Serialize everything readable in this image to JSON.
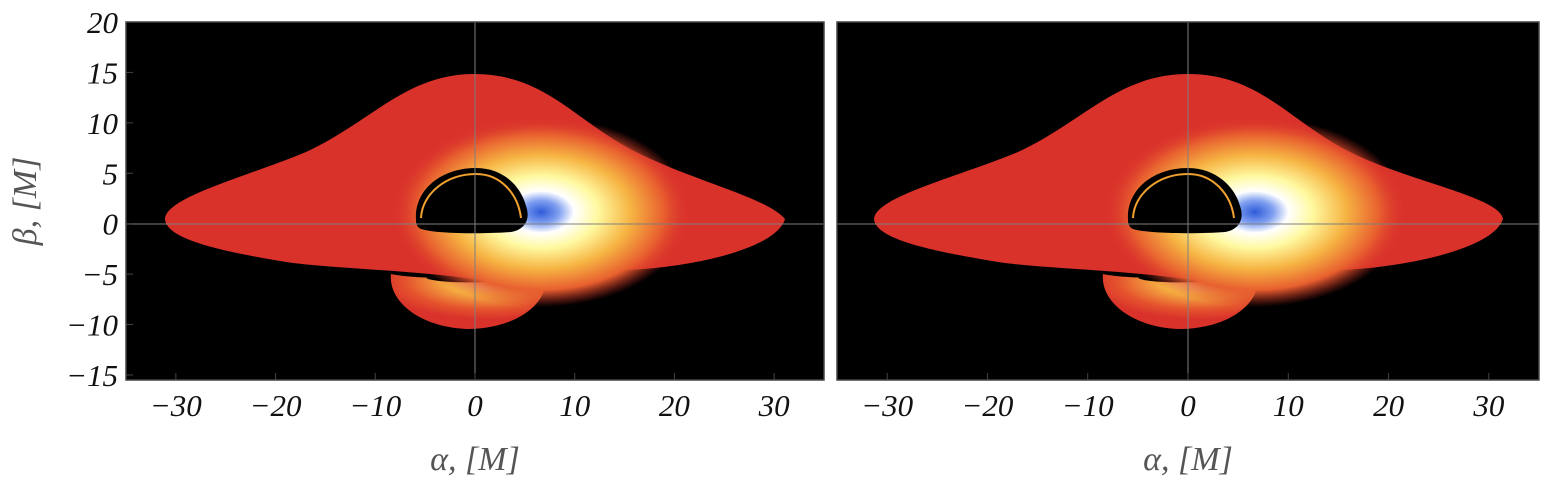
{
  "chart_data": [
    {
      "type": "heatmap",
      "xlabel": "α, [M]",
      "ylabel": "β, [M]",
      "xlim": [
        -35,
        35
      ],
      "ylim": [
        -15.5,
        20
      ],
      "xticks": [
        -30,
        -20,
        -10,
        0,
        10,
        20,
        30
      ],
      "xtick_labels": [
        "−30",
        "−20",
        "−10",
        "0",
        "10",
        "20",
        "30"
      ],
      "yticks": [
        20,
        15,
        10,
        5,
        0,
        -5,
        -10,
        -15
      ],
      "ytick_labels": [
        "20",
        "15",
        "10",
        "5",
        "0",
        "−5",
        "−10",
        "−15"
      ],
      "background": "#000000",
      "grid": "axes through origin",
      "disk": {
        "x_extent": [
          -31,
          31
        ],
        "top": 14.7,
        "bottom": -4.8
      },
      "shadow": {
        "center_x": -1,
        "top": 5.3,
        "bottom": -0.9,
        "half_width": 5.8
      },
      "lower_image": {
        "center_x": -0.5,
        "outer_radius_x": 8,
        "bottom": -10.3,
        "top": -4.8
      },
      "brightest_spot": {
        "x": 6.5,
        "y": 0.2
      },
      "colors": {
        "disk": "#d9322b",
        "mid": "#f28a2e",
        "bright": "#fff9a0",
        "peak": "#2f5bd8"
      }
    },
    {
      "type": "heatmap",
      "xlabel": "α, [M]",
      "ylabel": "",
      "xlim": [
        -35,
        35
      ],
      "ylim": [
        -15.5,
        20
      ],
      "xticks": [
        -30,
        -20,
        -10,
        0,
        10,
        20,
        30
      ],
      "xtick_labels": [
        "−30",
        "−20",
        "−10",
        "0",
        "10",
        "20",
        "30"
      ],
      "yticks": [],
      "ytick_labels": [],
      "background": "#000000",
      "grid": "axes through origin",
      "disk": {
        "x_extent": [
          -31,
          31
        ],
        "top": 14.7,
        "bottom": -4.8
      },
      "shadow": {
        "center_x": -1,
        "top": 5.3,
        "bottom": -0.9,
        "half_width": 5.8
      },
      "lower_image": {
        "center_x": -0.5,
        "outer_radius_x": 8,
        "bottom": -10.3,
        "top": -4.8
      },
      "brightest_spot": {
        "x": 6.5,
        "y": 0.2
      },
      "colors": {
        "disk": "#d9322b",
        "mid": "#f28a2e",
        "bright": "#fff9a0",
        "peak": "#2f5bd8"
      }
    }
  ]
}
